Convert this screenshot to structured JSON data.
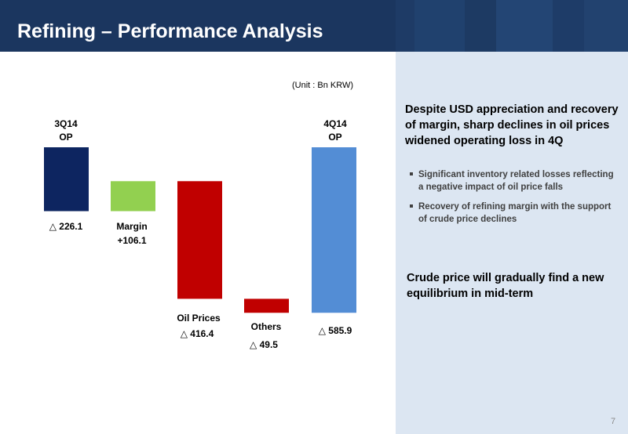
{
  "slide": {
    "title": "Refining – Performance Analysis",
    "unit": "(Unit : Bn KRW)",
    "page_number": "7"
  },
  "chart_data": {
    "type": "bar",
    "subtype": "waterfall",
    "categories": [
      "3Q14 OP",
      "Margin",
      "Oil Prices",
      "Others",
      "4Q14 OP"
    ],
    "values": [
      -226.1,
      106.1,
      -416.4,
      -49.5,
      -585.9
    ],
    "value_labels": [
      "△ 226.1",
      "+106.1",
      "△ 416.4",
      "△ 49.5",
      "△ 585.9"
    ],
    "category_labels": [
      "3Q14\nOP",
      "Margin",
      "Oil Prices",
      "Others",
      "4Q14\nOP"
    ],
    "colors": [
      "#0d2560",
      "#92d050",
      "#c00000",
      "#c00000",
      "#538dd5"
    ],
    "unit": "Bn KRW"
  },
  "sidebar": {
    "headline": "Despite USD appreciation and recovery of margin, sharp declines in oil prices widened operating loss in 4Q",
    "bullets": [
      "Significant inventory related losses reflecting a negative impact of oil price falls",
      "Recovery of refining margin with the support of crude price declines"
    ],
    "conclusion": "Crude price will gradually find a new equilibrium in mid-term"
  },
  "colors": {
    "header_bg": "#1b365f",
    "panel_bg": "#dce6f2",
    "bullet_text": "#404040"
  }
}
